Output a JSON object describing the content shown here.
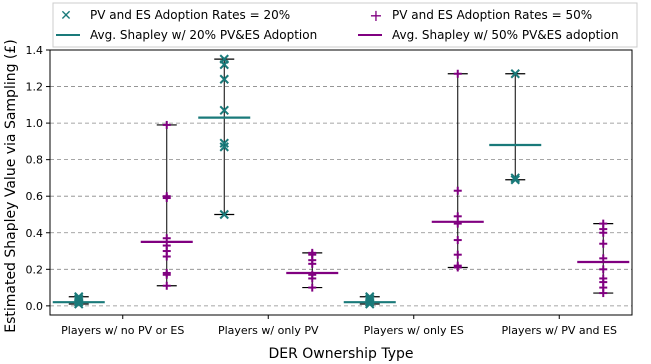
{
  "chart_data": {
    "type": "scatter",
    "title": "",
    "xlabel": "DER Ownership Type",
    "ylabel": "Estimated Shapley Value via Sampling (£)",
    "ylim": [
      -0.05,
      1.4
    ],
    "yticks": [
      "0.0",
      "0.2",
      "0.4",
      "0.6",
      "0.8",
      "1.0",
      "1.2",
      "1.4"
    ],
    "grid": "horizontal dashed",
    "legend_position": "top",
    "categories": [
      "Players w/ no PV or ES",
      "Players w/ only PV",
      "Players w/ only ES",
      "Players w/ PV and ES"
    ],
    "series": [
      {
        "name": "PV and ES Adoption Rates = 20%",
        "marker": "x",
        "color": "#1a7a7a",
        "points": [
          [
            0.01,
            0.02,
            0.03,
            0.04,
            0.05
          ],
          [
            0.5,
            0.87,
            0.89,
            1.07,
            1.24,
            1.32,
            1.35
          ],
          [
            0.01,
            0.02,
            0.03,
            0.04,
            0.05
          ],
          [
            0.69,
            0.7,
            1.27
          ]
        ],
        "min": [
          0.01,
          0.5,
          0.01,
          0.69
        ],
        "max": [
          0.05,
          1.35,
          0.05,
          1.27
        ]
      },
      {
        "name": "PV and ES Adoption Rates = 50%",
        "marker": "+",
        "color": "#800080",
        "points": [
          [
            0.11,
            0.17,
            0.18,
            0.27,
            0.3,
            0.33,
            0.37,
            0.59,
            0.6,
            0.99
          ],
          [
            0.1,
            0.15,
            0.17,
            0.23,
            0.25,
            0.28,
            0.29
          ],
          [
            0.21,
            0.22,
            0.28,
            0.36,
            0.45,
            0.49,
            0.63,
            1.27
          ],
          [
            0.07,
            0.1,
            0.13,
            0.15,
            0.2,
            0.26,
            0.34,
            0.4,
            0.42,
            0.45
          ]
        ],
        "min": [
          0.11,
          0.1,
          0.21,
          0.07
        ],
        "max": [
          0.99,
          0.29,
          1.27,
          0.45
        ]
      }
    ],
    "averages": [
      {
        "name": "Avg. Shapley w/ 20% PV&ES Adoption",
        "color": "#1a7a7a",
        "values": [
          0.02,
          1.03,
          0.02,
          0.88
        ]
      },
      {
        "name": "Avg. Shapley w/ 50% PV&ES adoption",
        "color": "#800080",
        "values": [
          0.35,
          0.18,
          0.46,
          0.24
        ]
      }
    ]
  }
}
